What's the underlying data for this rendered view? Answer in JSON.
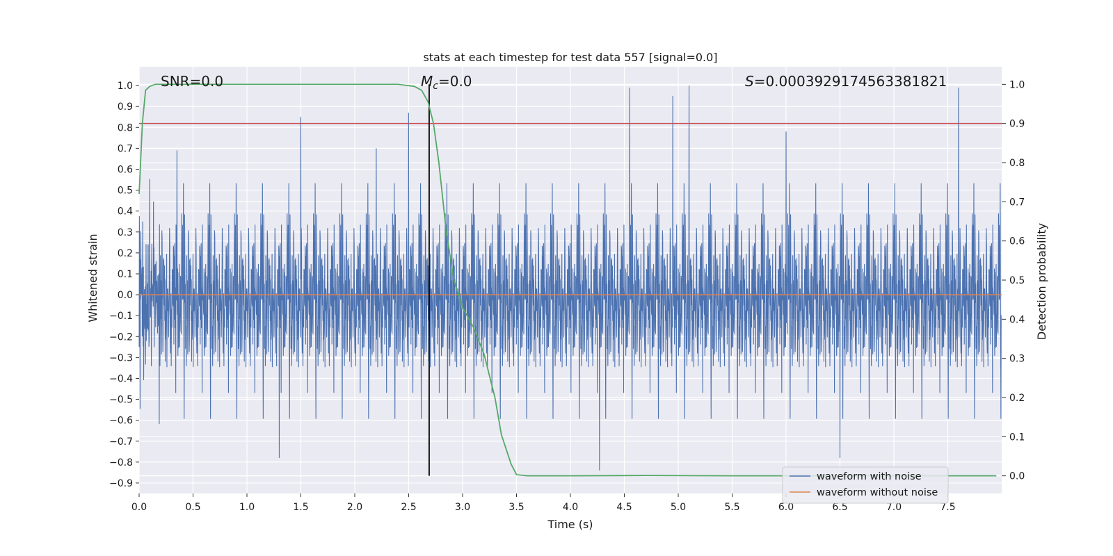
{
  "chart_data": {
    "type": "line",
    "title": "stats at each timestep for test data 557 [signal=0.0]",
    "xlabel": "Time (s)",
    "ylabel": "Whitened strain",
    "y2label": "Detection probability",
    "xlim": [
      0.0,
      8.0
    ],
    "ylim": [
      -0.95,
      1.09
    ],
    "y2lim": [
      -0.045,
      1.045
    ],
    "xticks": [
      0.0,
      0.5,
      1.0,
      1.5,
      2.0,
      2.5,
      3.0,
      3.5,
      4.0,
      4.5,
      5.0,
      5.5,
      6.0,
      6.5,
      7.0,
      7.5
    ],
    "xtick_labels": [
      "0.0",
      "0.5",
      "1.0",
      "1.5",
      "2.0",
      "2.5",
      "3.0",
      "3.5",
      "4.0",
      "4.5",
      "5.0",
      "5.5",
      "6.0",
      "6.5",
      "7.0",
      "7.5"
    ],
    "yticks": [
      1.0,
      0.9,
      0.8,
      0.7,
      0.6,
      0.5,
      0.4,
      0.3,
      0.2,
      0.1,
      0.0,
      -0.1,
      -0.2,
      -0.3,
      -0.4,
      -0.5,
      -0.6,
      -0.7,
      -0.8,
      -0.9
    ],
    "ytick_labels": [
      "1.0",
      "0.9",
      "0.8",
      "0.7",
      "0.6",
      "0.5",
      "0.4",
      "0.3",
      "0.2",
      "0.1",
      "0.0",
      "−0.1",
      "−0.2",
      "−0.3",
      "−0.4",
      "−0.5",
      "−0.6",
      "−0.7",
      "−0.8",
      "−0.9"
    ],
    "y2ticks": [
      1.0,
      0.9,
      0.8,
      0.7,
      0.6,
      0.5,
      0.4,
      0.3,
      0.2,
      0.1,
      0.0
    ],
    "y2tick_labels": [
      "1.0",
      "0.9",
      "0.8",
      "0.7",
      "0.6",
      "0.5",
      "0.4",
      "0.3",
      "0.2",
      "0.1",
      "0.0"
    ],
    "grid": true,
    "legend_position": "bottom-right",
    "series": [
      {
        "name": "waveform with noise",
        "color": "#4c72b0",
        "description": "dense noise trace, envelope approx ±0.45 with spikes up to 1.0 and down to -0.85",
        "spikes": [
          {
            "x": 0.35,
            "y": 0.69
          },
          {
            "x": 1.5,
            "y": 0.85
          },
          {
            "x": 2.2,
            "y": 0.7
          },
          {
            "x": 2.5,
            "y": 0.87
          },
          {
            "x": 4.55,
            "y": 0.99
          },
          {
            "x": 4.95,
            "y": 0.95
          },
          {
            "x": 5.1,
            "y": 1.0
          },
          {
            "x": 6.0,
            "y": 0.78
          },
          {
            "x": 7.6,
            "y": 0.99
          },
          {
            "x": 1.3,
            "y": -0.78
          },
          {
            "x": 4.27,
            "y": -0.84
          },
          {
            "x": 6.5,
            "y": -0.78
          }
        ]
      },
      {
        "name": "waveform without noise",
        "color": "#dd8452",
        "x": [
          0.0,
          8.0
        ],
        "y": [
          0.0,
          0.0
        ]
      },
      {
        "name": "",
        "axis": "right",
        "color": "#55a868",
        "x": [
          0.0,
          0.03,
          0.06,
          0.1,
          0.15,
          0.3,
          1.0,
          2.0,
          2.4,
          2.55,
          2.62,
          2.68,
          2.73,
          2.78,
          2.85,
          2.92,
          3.0,
          3.1,
          3.2,
          3.3,
          3.36,
          3.45,
          3.5,
          3.6,
          4.0,
          4.7,
          5.5,
          6.5,
          7.4,
          7.95
        ],
        "y": [
          0.72,
          0.9,
          0.985,
          0.995,
          1.0,
          1.0,
          1.0,
          1.0,
          1.0,
          0.995,
          0.985,
          0.955,
          0.9,
          0.8,
          0.62,
          0.5,
          0.43,
          0.38,
          0.31,
          0.2,
          0.105,
          0.03,
          0.003,
          0.0,
          0.0,
          0.001,
          0.0,
          0.0,
          0.0,
          0.0
        ]
      },
      {
        "name": "",
        "axis": "right",
        "color": "#c44e52",
        "x": [
          0.0,
          8.0
        ],
        "y": [
          0.9,
          0.9
        ]
      }
    ],
    "vline": {
      "x": 2.69,
      "color": "#000000",
      "y2_from": 0.0,
      "y2_to": 1.0
    },
    "annotations": {
      "snr": "SNR=0.0",
      "mc_symbol": "M",
      "mc_sub": "c",
      "mc_value": "=0.0",
      "s_symbol": "S",
      "s_value": "=0.0003929174563381821"
    },
    "legend": {
      "noise_label": "waveform with noise",
      "clean_label": "waveform without noise"
    }
  }
}
